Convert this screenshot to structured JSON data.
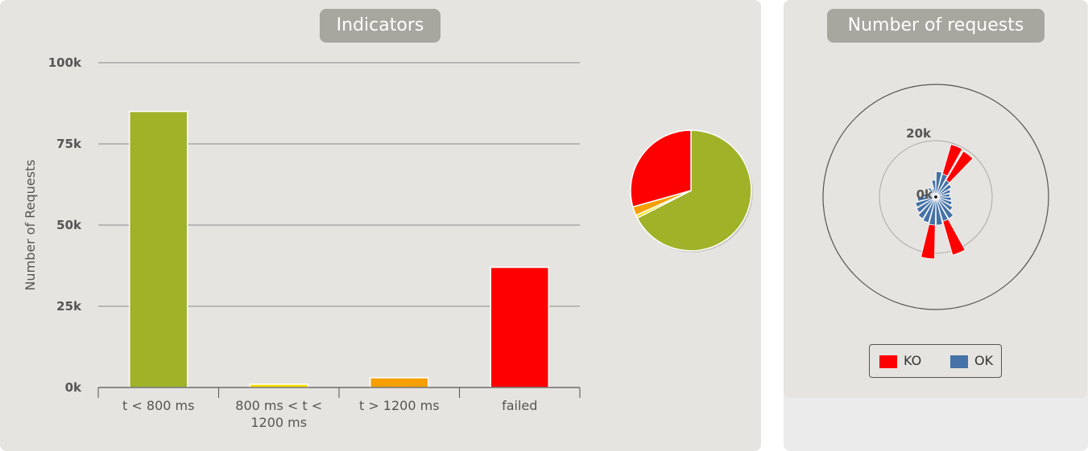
{
  "panels": {
    "indicators_title": "Indicators",
    "requests_title": "Number of requests"
  },
  "colors": {
    "green": "#a0b228",
    "yellow": "#ffdd00",
    "orange": "#f59f00",
    "red": "#ff0000",
    "blue": "#4572a7"
  },
  "chart_data": [
    {
      "type": "bar",
      "title": "Indicators",
      "ylabel": "Number of Requests",
      "xlabel": "",
      "categories": [
        "t < 800 ms",
        "800 ms < t < 1200 ms",
        "t > 1200 ms",
        "failed"
      ],
      "category_lines": [
        [
          "t < 800 ms"
        ],
        [
          "800 ms < t <",
          "1200 ms"
        ],
        [
          "t > 1200 ms"
        ],
        [
          "failed"
        ]
      ],
      "values": [
        85000,
        1000,
        3000,
        37000
      ],
      "bar_colors": [
        "#a0b228",
        "#ffdd00",
        "#f59f00",
        "#ff0000"
      ],
      "ylim": [
        0,
        100000
      ],
      "yticks": [
        0,
        25000,
        50000,
        75000,
        100000
      ],
      "ytick_labels": [
        "0k",
        "25k",
        "50k",
        "75k",
        "100k"
      ],
      "grid": true
    },
    {
      "type": "pie",
      "labels": [
        "t < 800 ms",
        "800 ms < t < 1200 ms",
        "t > 1200 ms",
        "failed"
      ],
      "values": [
        85000,
        1000,
        3000,
        37000
      ],
      "colors": [
        "#a0b228",
        "#ffdd00",
        "#f59f00",
        "#ff0000"
      ]
    },
    {
      "type": "polar-bar",
      "title": "Number of requests",
      "radial_tick_labels": [
        "0k",
        "20k"
      ],
      "radial_ticks": [
        0,
        20000
      ],
      "rmax": 40000,
      "series": [
        {
          "name": "KO",
          "color": "#ff0000",
          "values": [
            0,
            11000,
            12000,
            0,
            0,
            0,
            0,
            0,
            0,
            0,
            12500,
            0,
            12000,
            0,
            0,
            0,
            0,
            0,
            0,
            0,
            0,
            0,
            0,
            0
          ]
        },
        {
          "name": "OK",
          "color": "#4572a7",
          "values": [
            9000,
            8500,
            7000,
            6500,
            5500,
            5000,
            5500,
            6000,
            7000,
            9000,
            9000,
            10000,
            10000,
            9500,
            9000,
            8000,
            7500,
            6500,
            5000,
            3000,
            2000,
            4000,
            3000,
            6000
          ]
        }
      ],
      "legend": "bottom"
    }
  ]
}
